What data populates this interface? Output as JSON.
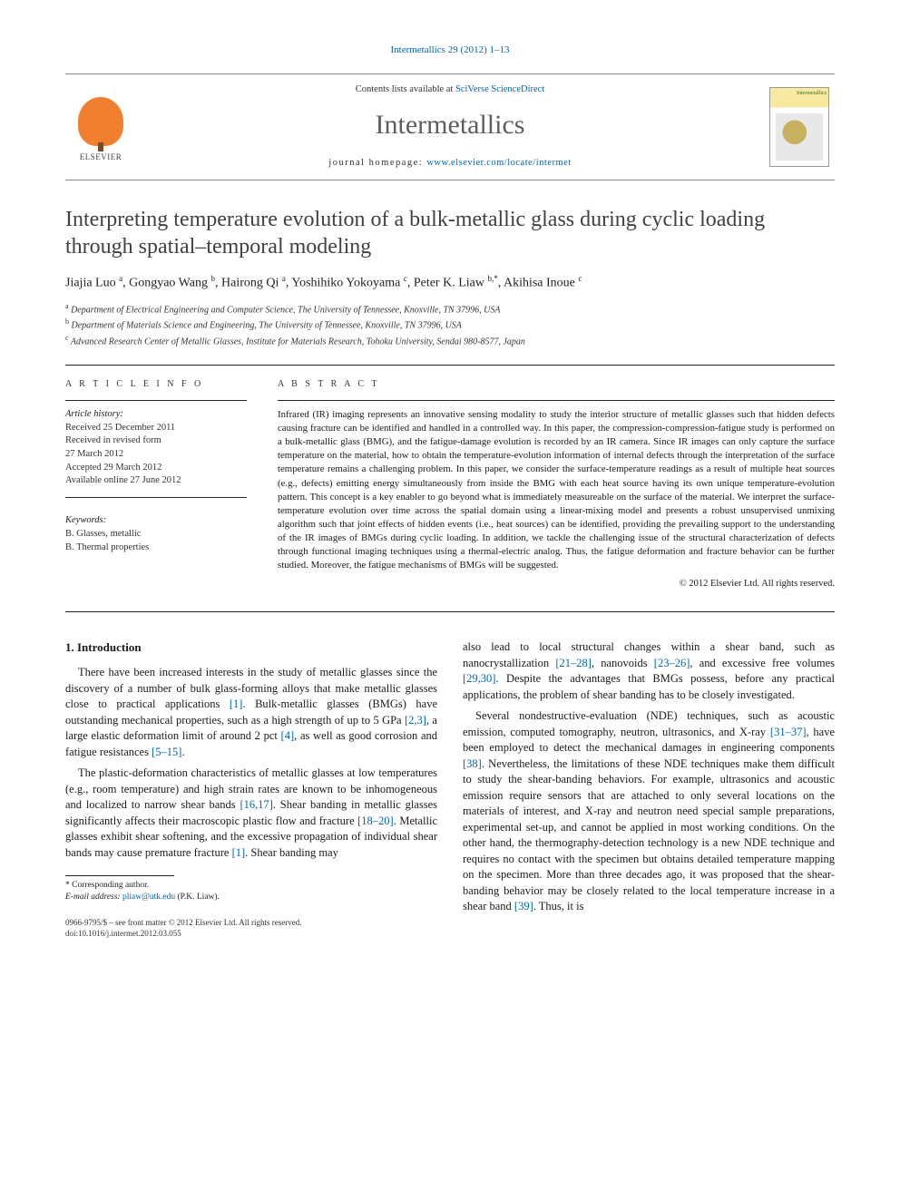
{
  "citation": {
    "journal_link_text": "Intermetallics 29 (2012) 1–13"
  },
  "masthead": {
    "elsevier_brand": "ELSEVIER",
    "contents_prefix": "Contents lists available at ",
    "contents_link": "SciVerse ScienceDirect",
    "journal_name": "Intermetallics",
    "homepage_label": "journal homepage: ",
    "homepage_url": "www.elsevier.com/locate/intermet",
    "cover_label": "Intermetallics"
  },
  "article": {
    "title": "Interpreting temperature evolution of a bulk-metallic glass during cyclic loading through spatial–temporal modeling",
    "authors_html": "Jiajia Luo <sup>a</sup>, Gongyao Wang <sup>b</sup>, Hairong Qi <sup>a</sup>, Yoshihiko Yokoyama <sup>c</sup>, Peter K. Liaw <sup>b,*</sup>, Akihisa Inoue <sup>c</sup>",
    "affiliations": [
      {
        "sup": "a",
        "text": "Department of Electrical Engineering and Computer Science, The University of Tennessee, Knoxville, TN 37996, USA"
      },
      {
        "sup": "b",
        "text": "Department of Materials Science and Engineering, The University of Tennessee, Knoxville, TN 37996, USA"
      },
      {
        "sup": "c",
        "text": "Advanced Research Center of Metallic Glasses, Institute for Materials Research, Tohoku University, Sendai 980-8577, Japan"
      }
    ]
  },
  "info": {
    "heading": "A R T I C L E   I N F O",
    "history_label": "Article history:",
    "history": [
      "Received 25 December 2011",
      "Received in revised form",
      "27 March 2012",
      "Accepted 29 March 2012",
      "Available online 27 June 2012"
    ],
    "keywords_label": "Keywords:",
    "keywords": [
      "B. Glasses, metallic",
      "B. Thermal properties"
    ]
  },
  "abstract": {
    "heading": "A B S T R A C T",
    "text": "Infrared (IR) imaging represents an innovative sensing modality to study the interior structure of metallic glasses such that hidden defects causing fracture can be identified and handled in a controlled way. In this paper, the compression-compression-fatigue study is performed on a bulk-metallic glass (BMG), and the fatigue-damage evolution is recorded by an IR camera. Since IR images can only capture the surface temperature on the material, how to obtain the temperature-evolution information of internal defects through the interpretation of the surface temperature remains a challenging problem. In this paper, we consider the surface-temperature readings as a result of multiple heat sources (e.g., defects) emitting energy simultaneously from inside the BMG with each heat source having its own unique temperature-evolution pattern. This concept is a key enabler to go beyond what is immediately measureable on the surface of the material. We interpret the surface-temperature evolution over time across the spatial domain using a linear-mixing model and presents a robust unsupervised unmixing algorithm such that joint effects of hidden events (i.e., heat sources) can be identified, providing the prevailing support to the understanding of the IR images of BMGs during cyclic loading. In addition, we tackle the challenging issue of the structural characterization of defects through functional imaging techniques using a thermal-electric analog. Thus, the fatigue deformation and fracture behavior can be further studied. Moreover, the fatigue mechanisms of BMGs will be suggested.",
    "copyright": "© 2012 Elsevier Ltd. All rights reserved."
  },
  "body": {
    "section1_heading": "1. Introduction",
    "p1_a": "There have been increased interests in the study of metallic glasses since the discovery of a number of bulk glass-forming alloys that make metallic glasses close to practical applications ",
    "p1_r1": "[1]",
    "p1_b": ". Bulk-metallic glasses (BMGs) have outstanding mechanical properties, such as a high strength of up to 5 GPa ",
    "p1_r2": "[2,3]",
    "p1_c": ", a large elastic deformation limit of around 2 pct ",
    "p1_r3": "[4]",
    "p1_d": ", as well as good corrosion and fatigue resistances ",
    "p1_r4": "[5–15]",
    "p1_e": ".",
    "p2_a": "The plastic-deformation characteristics of metallic glasses at low temperatures (e.g., room temperature) and high strain rates are known to be inhomogeneous and localized to narrow shear bands ",
    "p2_r1": "[16,17]",
    "p2_b": ". Shear banding in metallic glasses significantly affects their macroscopic plastic flow and fracture ",
    "p2_r2": "[18–20]",
    "p2_c": ". Metallic glasses exhibit shear softening, and the excessive propagation of individual shear bands may cause premature fracture ",
    "p2_r3": "[1]",
    "p2_d": ". Shear banding may",
    "p3_a": "also lead to local structural changes within a shear band, such as nanocrystallization ",
    "p3_r1": "[21–28]",
    "p3_b": ", nanovoids ",
    "p3_r2": "[23–26]",
    "p3_c": ", and excessive free volumes ",
    "p3_r3": "[29,30]",
    "p3_d": ". Despite the advantages that BMGs possess, before any practical applications, the problem of shear banding has to be closely investigated.",
    "p4_a": "Several nondestructive-evaluation (NDE) techniques, such as acoustic emission, computed tomography, neutron, ultrasonics, and X-ray ",
    "p4_r1": "[31–37]",
    "p4_b": ", have been employed to detect the mechanical damages in engineering components ",
    "p4_r2": "[38]",
    "p4_c": ". Nevertheless, the limitations of these NDE techniques make them difficult to study the shear-banding behaviors. For example, ultrasonics and acoustic emission require sensors that are attached to only several locations on the materials of interest, and X-ray and neutron need special sample preparations, experimental set-up, and cannot be applied in most working conditions. On the other hand, the thermography-detection technology is a new NDE technique and requires no contact with the specimen but obtains detailed temperature mapping on the specimen. More than three decades ago, it was proposed that the shear-banding behavior may be closely related to the local temperature increase in a shear band ",
    "p4_r3": "[39]",
    "p4_d": ". Thus, it is"
  },
  "footnote": {
    "corr_label": "* Corresponding author.",
    "email_label": "E-mail address: ",
    "email": "pliaw@utk.edu",
    "email_who": " (P.K. Liaw)."
  },
  "bottom": {
    "line1": "0966-9795/$ – see front matter © 2012 Elsevier Ltd. All rights reserved.",
    "line2": "doi:10.1016/j.intermet.2012.03.055"
  },
  "colors": {
    "link": "#0066aa",
    "text": "#1a1a1a",
    "muted": "#5a5a5a",
    "logo_orange": "#f08030"
  }
}
